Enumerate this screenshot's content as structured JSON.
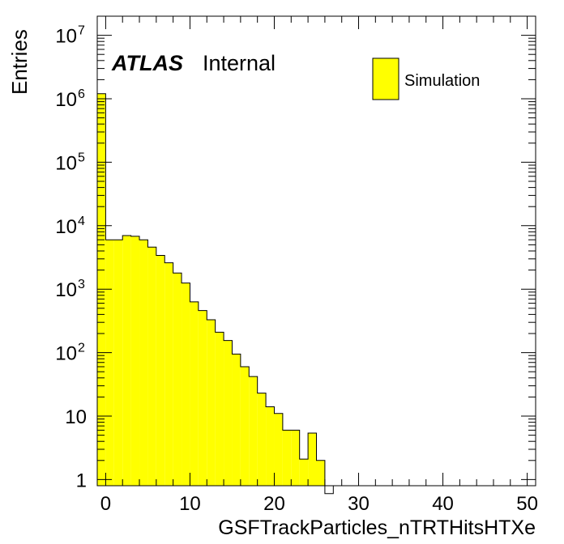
{
  "chart_data": {
    "type": "bar",
    "histogram": true,
    "log_y": true,
    "xlabel": "GSFTrackParticles_nTRTHitsHTXe",
    "ylabel": "Entries",
    "xlim": [
      -1,
      51
    ],
    "ylim": [
      0.8,
      20000000
    ],
    "x_ticks": [
      0,
      10,
      20,
      30,
      40,
      50
    ],
    "x_tick_labels": [
      "0",
      "10",
      "20",
      "30",
      "40",
      "50"
    ],
    "y_ticks": [
      1,
      10,
      100,
      1000,
      10000,
      100000,
      1000000,
      10000000
    ],
    "y_tick_labels": [
      {
        "base": "1",
        "exp": ""
      },
      {
        "base": "10",
        "exp": ""
      },
      {
        "base": "10",
        "exp": "2"
      },
      {
        "base": "10",
        "exp": "3"
      },
      {
        "base": "10",
        "exp": "4"
      },
      {
        "base": "10",
        "exp": "5"
      },
      {
        "base": "10",
        "exp": "6"
      },
      {
        "base": "10",
        "exp": "7"
      }
    ],
    "bin_width": 1,
    "bin_low_edges": [
      -1,
      0,
      1,
      2,
      3,
      4,
      5,
      6,
      7,
      8,
      9,
      10,
      11,
      12,
      13,
      14,
      15,
      16,
      17,
      18,
      19,
      20,
      21,
      22,
      23,
      24,
      25,
      26,
      27,
      28,
      29,
      30,
      31,
      32,
      33,
      34,
      35,
      36,
      37,
      38,
      39,
      40,
      41,
      42,
      43,
      44,
      45,
      46,
      47,
      48,
      49,
      50
    ],
    "values": [
      1200000,
      6000,
      6000,
      7000,
      6800,
      6000,
      4600,
      3400,
      2600,
      1800,
      1250,
      630,
      460,
      330,
      210,
      155,
      95,
      60,
      42,
      23,
      14,
      11,
      6,
      6,
      2.1,
      5.4,
      2,
      0.6,
      0,
      0,
      0,
      0,
      0,
      0,
      0,
      0,
      0,
      0,
      0,
      0,
      0,
      0,
      0,
      0,
      0,
      0,
      0,
      0,
      0,
      0,
      0,
      0
    ],
    "fill_color": "#ffff00",
    "line_color": "#000000",
    "legend": {
      "position": "top-right",
      "entries": [
        {
          "label": "Simulation",
          "color": "#ffff00"
        }
      ]
    },
    "annotation": {
      "bold_italic": "ATLAS",
      "normal": "Internal"
    }
  }
}
